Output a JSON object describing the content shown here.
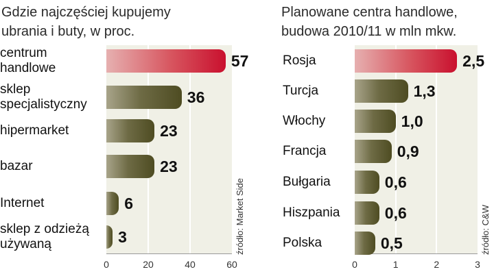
{
  "chart_data": [
    {
      "type": "bar",
      "orientation": "horizontal",
      "title": "Gdzie najczęściej kupujemy ubrania i buty, w proc.",
      "categories": [
        "centrum handlowe",
        "sklep specjalistyczny",
        "hipermarket",
        "bazar",
        "Internet",
        "sklep z odzieżą używaną"
      ],
      "values": [
        57,
        36,
        23,
        23,
        6,
        3
      ],
      "value_labels": [
        "57",
        "36",
        "23",
        "23",
        "6",
        "3"
      ],
      "highlighted_index": 0,
      "xlim": [
        0,
        60
      ],
      "xticks": [
        "0",
        "20",
        "40",
        "60"
      ],
      "grid": true,
      "source": "źródło: Market Side"
    },
    {
      "type": "bar",
      "orientation": "horizontal",
      "title": "Planowane centra handlowe, budowa 2010/11 w mln mkw.",
      "categories": [
        "Rosja",
        "Turcja",
        "Włochy",
        "Francja",
        "Bułgaria",
        "Hiszpania",
        "Polska"
      ],
      "values": [
        2.5,
        1.3,
        1.0,
        0.9,
        0.6,
        0.6,
        0.5
      ],
      "value_labels": [
        "2,5",
        "1,3",
        "1,0",
        "0,9",
        "0,6",
        "0,6",
        "0,5"
      ],
      "highlighted_index": 0,
      "xlim": [
        0,
        3
      ],
      "xticks": [
        "0",
        "1",
        "2",
        "3"
      ],
      "grid": true,
      "source": "źródło: C&W"
    }
  ],
  "colors": {
    "highlight": "#c9102e",
    "bar": "#4e4c22",
    "plot_background": "#f0f0e6"
  }
}
